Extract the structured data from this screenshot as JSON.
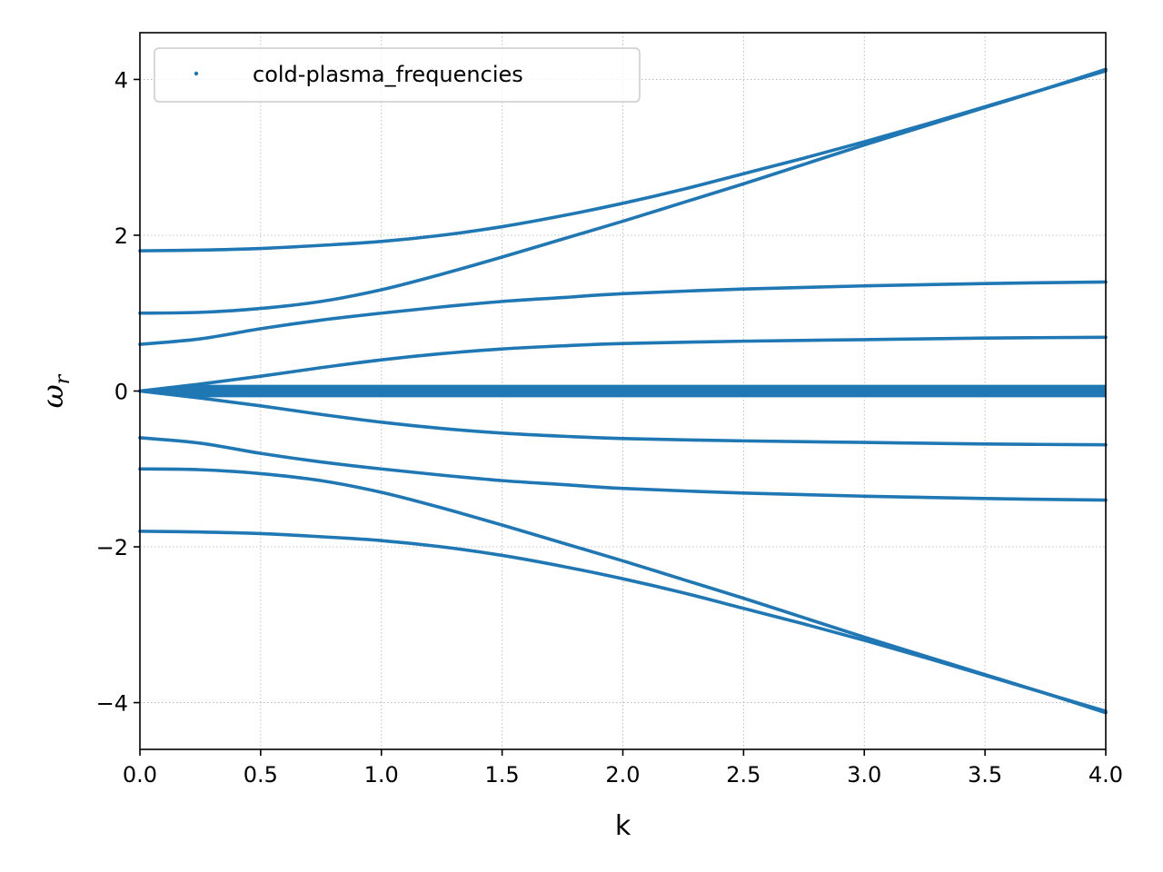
{
  "chart_data": {
    "type": "scatter",
    "title": "",
    "xlabel": "k",
    "ylabel": "ω_r",
    "ylabel_main": "ω",
    "ylabel_sub": "r",
    "xlim": [
      0.0,
      4.0
    ],
    "ylim": [
      -4.6,
      4.6
    ],
    "xticks": [
      0.0,
      0.5,
      1.0,
      1.5,
      2.0,
      2.5,
      3.0,
      3.5,
      4.0
    ],
    "xtick_labels": [
      "0.0",
      "0.5",
      "1.0",
      "1.5",
      "2.0",
      "2.5",
      "3.0",
      "3.5",
      "4.0"
    ],
    "yticks": [
      4,
      2,
      0,
      -2,
      -4
    ],
    "ytick_labels": [
      "4",
      "2",
      "0",
      "−2",
      "−4"
    ],
    "grid": true,
    "legend_position": "top-left",
    "color": "#1f77b4",
    "series": [
      {
        "name": "cold-plasma_frequencies",
        "branches": [
          {
            "x": [
              0,
              0.25,
              0.5,
              0.75,
              1.0,
              1.25,
              1.5,
              1.75,
              2.0,
              2.25,
              2.5,
              2.75,
              3.0,
              3.25,
              3.5,
              3.75,
              4.0
            ],
            "y": [
              1.8,
              1.81,
              1.83,
              1.87,
              1.92,
              2.0,
              2.11,
              2.25,
              2.41,
              2.59,
              2.79,
              2.99,
              3.2,
              3.42,
              3.65,
              3.88,
              4.11
            ]
          },
          {
            "x": [
              0,
              0.25,
              0.5,
              0.75,
              1.0,
              1.25,
              1.5,
              1.75,
              2.0,
              2.25,
              2.5,
              2.75,
              3.0,
              3.25,
              3.5,
              3.75,
              4.0
            ],
            "y": [
              1.0,
              1.01,
              1.06,
              1.15,
              1.3,
              1.5,
              1.72,
              1.95,
              2.18,
              2.42,
              2.66,
              2.91,
              3.16,
              3.4,
              3.64,
              3.88,
              4.13
            ]
          },
          {
            "x": [
              0,
              0.25,
              0.5,
              0.75,
              1.0,
              1.25,
              1.5,
              1.75,
              2.0,
              2.5,
              3.0,
              3.5,
              4.0
            ],
            "y": [
              0.6,
              0.67,
              0.8,
              0.91,
              1.0,
              1.08,
              1.15,
              1.2,
              1.25,
              1.31,
              1.35,
              1.38,
              1.4
            ]
          },
          {
            "x": [
              0,
              0.25,
              0.5,
              0.75,
              1.0,
              1.25,
              1.5,
              1.75,
              2.0,
              2.5,
              3.0,
              3.5,
              4.0
            ],
            "y": [
              0.0,
              0.09,
              0.19,
              0.3,
              0.4,
              0.48,
              0.54,
              0.58,
              0.61,
              0.64,
              0.66,
              0.68,
              0.69
            ]
          },
          {
            "x": [
              0,
              0.25,
              0.5,
              0.75,
              1.0,
              1.25,
              1.5,
              1.75,
              2.0,
              2.5,
              3.0,
              3.5,
              4.0
            ],
            "y": [
              0.0,
              -0.09,
              -0.19,
              -0.3,
              -0.4,
              -0.48,
              -0.54,
              -0.58,
              -0.61,
              -0.64,
              -0.66,
              -0.68,
              -0.69
            ]
          },
          {
            "x": [
              0,
              0.25,
              0.5,
              0.75,
              1.0,
              1.25,
              1.5,
              1.75,
              2.0,
              2.5,
              3.0,
              3.5,
              4.0
            ],
            "y": [
              -0.6,
              -0.67,
              -0.8,
              -0.91,
              -1.0,
              -1.08,
              -1.15,
              -1.2,
              -1.25,
              -1.31,
              -1.35,
              -1.38,
              -1.4
            ]
          },
          {
            "x": [
              0,
              0.25,
              0.5,
              0.75,
              1.0,
              1.25,
              1.5,
              1.75,
              2.0,
              2.25,
              2.5,
              2.75,
              3.0,
              3.25,
              3.5,
              3.75,
              4.0
            ],
            "y": [
              -1.0,
              -1.01,
              -1.06,
              -1.15,
              -1.3,
              -1.5,
              -1.72,
              -1.95,
              -2.18,
              -2.42,
              -2.66,
              -2.91,
              -3.16,
              -3.4,
              -3.64,
              -3.88,
              -4.13
            ]
          },
          {
            "x": [
              0,
              0.25,
              0.5,
              0.75,
              1.0,
              1.25,
              1.5,
              1.75,
              2.0,
              2.25,
              2.5,
              2.75,
              3.0,
              3.25,
              3.5,
              3.75,
              4.0
            ],
            "y": [
              -1.8,
              -1.81,
              -1.83,
              -1.87,
              -1.92,
              -2.0,
              -2.11,
              -2.25,
              -2.41,
              -2.59,
              -2.79,
              -2.99,
              -3.2,
              -3.42,
              -3.65,
              -3.88,
              -4.11
            ]
          },
          {
            "x": [
              0,
              4.0
            ],
            "y": [
              0.0,
              0.0
            ],
            "band_halfwidth": [
              0.0,
              0.08
            ]
          }
        ]
      }
    ]
  }
}
